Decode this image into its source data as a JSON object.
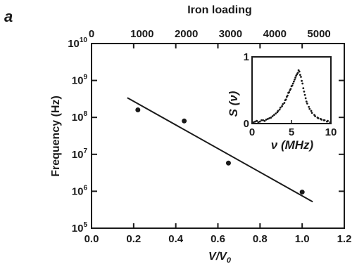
{
  "chart_data": [
    {
      "type": "scatter",
      "panel_label": "a",
      "xlabel": "V/V",
      "xlabel_subscript": "0",
      "ylabel": "Frequency (Hz)",
      "top_xlabel": "Iron loading",
      "xlim": [
        0.0,
        1.2
      ],
      "ylim": [
        100000,
        10000000000
      ],
      "yscale": "log",
      "x_ticks": [
        "0.0",
        "0.2",
        "0.4",
        "0.6",
        "0.8",
        "1.0",
        "1.2"
      ],
      "y_ticks": [
        {
          "base": "10",
          "exp": "5"
        },
        {
          "base": "10",
          "exp": "6"
        },
        {
          "base": "10",
          "exp": "7"
        },
        {
          "base": "10",
          "exp": "8"
        },
        {
          "base": "10",
          "exp": "9"
        },
        {
          "base": "10",
          "exp": "10"
        }
      ],
      "top_ticks": [
        "0",
        "1000",
        "2000",
        "3000",
        "4000",
        "5000"
      ],
      "top_tick_positions": [
        0.0,
        0.24,
        0.45,
        0.66,
        0.87,
        1.08
      ],
      "points": [
        {
          "x": 0.22,
          "y": 160000000
        },
        {
          "x": 0.44,
          "y": 80000000
        },
        {
          "x": 0.65,
          "y": 5800000
        },
        {
          "x": 1.0,
          "y": 950000
        }
      ],
      "fit_line": [
        {
          "x": 0.17,
          "y": 340000000
        },
        {
          "x": 1.05,
          "y": 520000
        }
      ],
      "grid": false,
      "colors": {
        "ink": "#1a1a1a"
      }
    },
    {
      "type": "scatter",
      "role": "inset",
      "xlabel": "ν (MHz)",
      "ylabel": "S (ν)",
      "xlim": [
        0,
        10
      ],
      "ylim": [
        0,
        1
      ],
      "x_ticks": [
        "0",
        "5",
        "10"
      ],
      "y_ticks": [
        "0",
        "1"
      ],
      "series": [
        {
          "x": [
            0.2,
            0.6,
            1.0,
            1.4,
            1.8,
            2.2,
            2.6,
            3.0,
            3.3,
            3.6,
            3.9,
            4.2,
            4.4,
            4.6,
            4.8,
            5.0,
            5.2,
            5.4,
            5.6,
            5.8,
            6.0,
            6.2,
            6.4,
            6.6,
            6.8,
            7.0,
            7.3,
            7.6,
            8.0,
            8.4,
            8.8,
            9.2,
            9.6
          ],
          "y": [
            0.02,
            0.04,
            0.03,
            0.05,
            0.06,
            0.08,
            0.11,
            0.15,
            0.19,
            0.24,
            0.29,
            0.35,
            0.4,
            0.46,
            0.5,
            0.56,
            0.6,
            0.66,
            0.72,
            0.76,
            0.78,
            0.7,
            0.6,
            0.48,
            0.38,
            0.3,
            0.22,
            0.16,
            0.11,
            0.08,
            0.06,
            0.05,
            0.04
          ]
        },
        {
          "x": [
            0.4,
            0.8,
            1.2,
            1.6,
            2.0,
            2.4,
            2.8,
            3.2,
            3.5,
            3.8,
            4.1,
            4.3,
            4.5,
            4.7,
            4.9,
            5.1,
            5.3,
            5.5,
            5.7,
            5.9,
            6.1,
            6.3,
            6.5,
            6.7,
            6.9,
            7.2,
            7.5,
            7.9,
            8.3,
            8.7,
            9.1,
            9.5,
            9.9
          ],
          "y": [
            0.03,
            0.02,
            0.05,
            0.04,
            0.07,
            0.09,
            0.13,
            0.17,
            0.21,
            0.26,
            0.31,
            0.36,
            0.42,
            0.47,
            0.52,
            0.57,
            0.63,
            0.69,
            0.74,
            0.8,
            0.73,
            0.64,
            0.53,
            0.43,
            0.33,
            0.25,
            0.19,
            0.13,
            0.09,
            0.07,
            0.05,
            0.03,
            0.02
          ]
        }
      ]
    }
  ]
}
